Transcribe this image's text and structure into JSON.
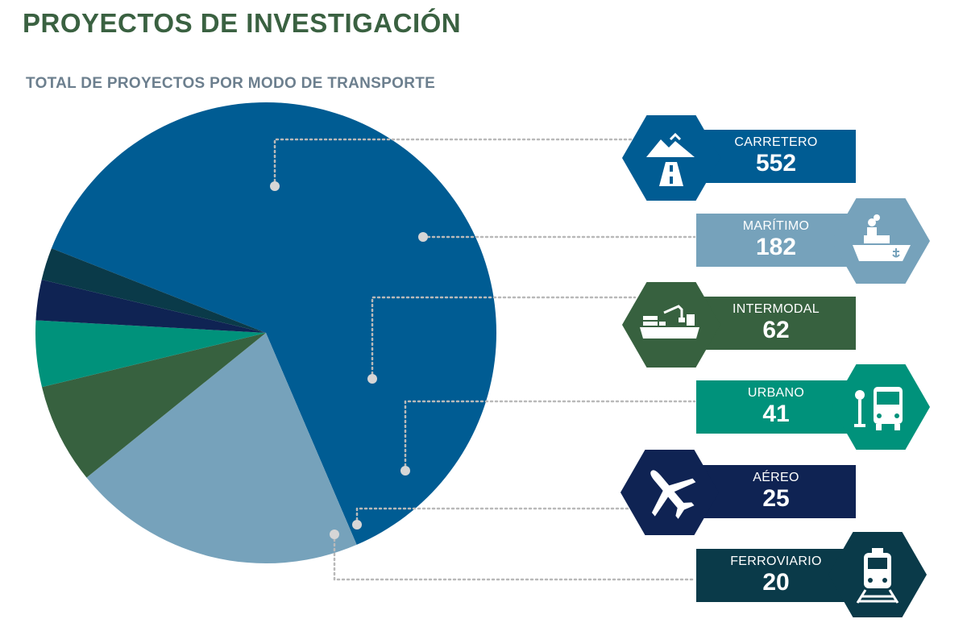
{
  "header": {
    "title": "PROYECTOS DE INVESTIGACIÓN",
    "subtitle": "TOTAL DE PROYECTOS POR MODO DE TRANSPORTE"
  },
  "colors": {
    "title": "#3a6141",
    "subtitle": "#6c7f8e",
    "leader": "#b9b9b9",
    "dot": "#d6d6d6"
  },
  "chart_data": {
    "type": "pie",
    "title": "TOTAL DE PROYECTOS POR MODO DE TRANSPORTE",
    "legend_position": "right",
    "slices": [
      {
        "label": "CARRETERO",
        "value": 552,
        "color": "#005c93",
        "icon": "road-mountain-icon"
      },
      {
        "label": "MARÍTIMO",
        "value": 182,
        "color": "#76a2bb",
        "icon": "ship-icon"
      },
      {
        "label": "INTERMODAL",
        "value": 62,
        "color": "#37613f",
        "icon": "cargo-ship-crane-icon"
      },
      {
        "label": "URBANO",
        "value": 41,
        "color": "#00927b",
        "icon": "bus-stop-icon"
      },
      {
        "label": "AÉREO",
        "value": 25,
        "color": "#0f2353",
        "icon": "airplane-icon"
      },
      {
        "label": "FERROVIARIO",
        "value": 20,
        "color": "#0a3a49",
        "icon": "train-icon"
      }
    ]
  }
}
